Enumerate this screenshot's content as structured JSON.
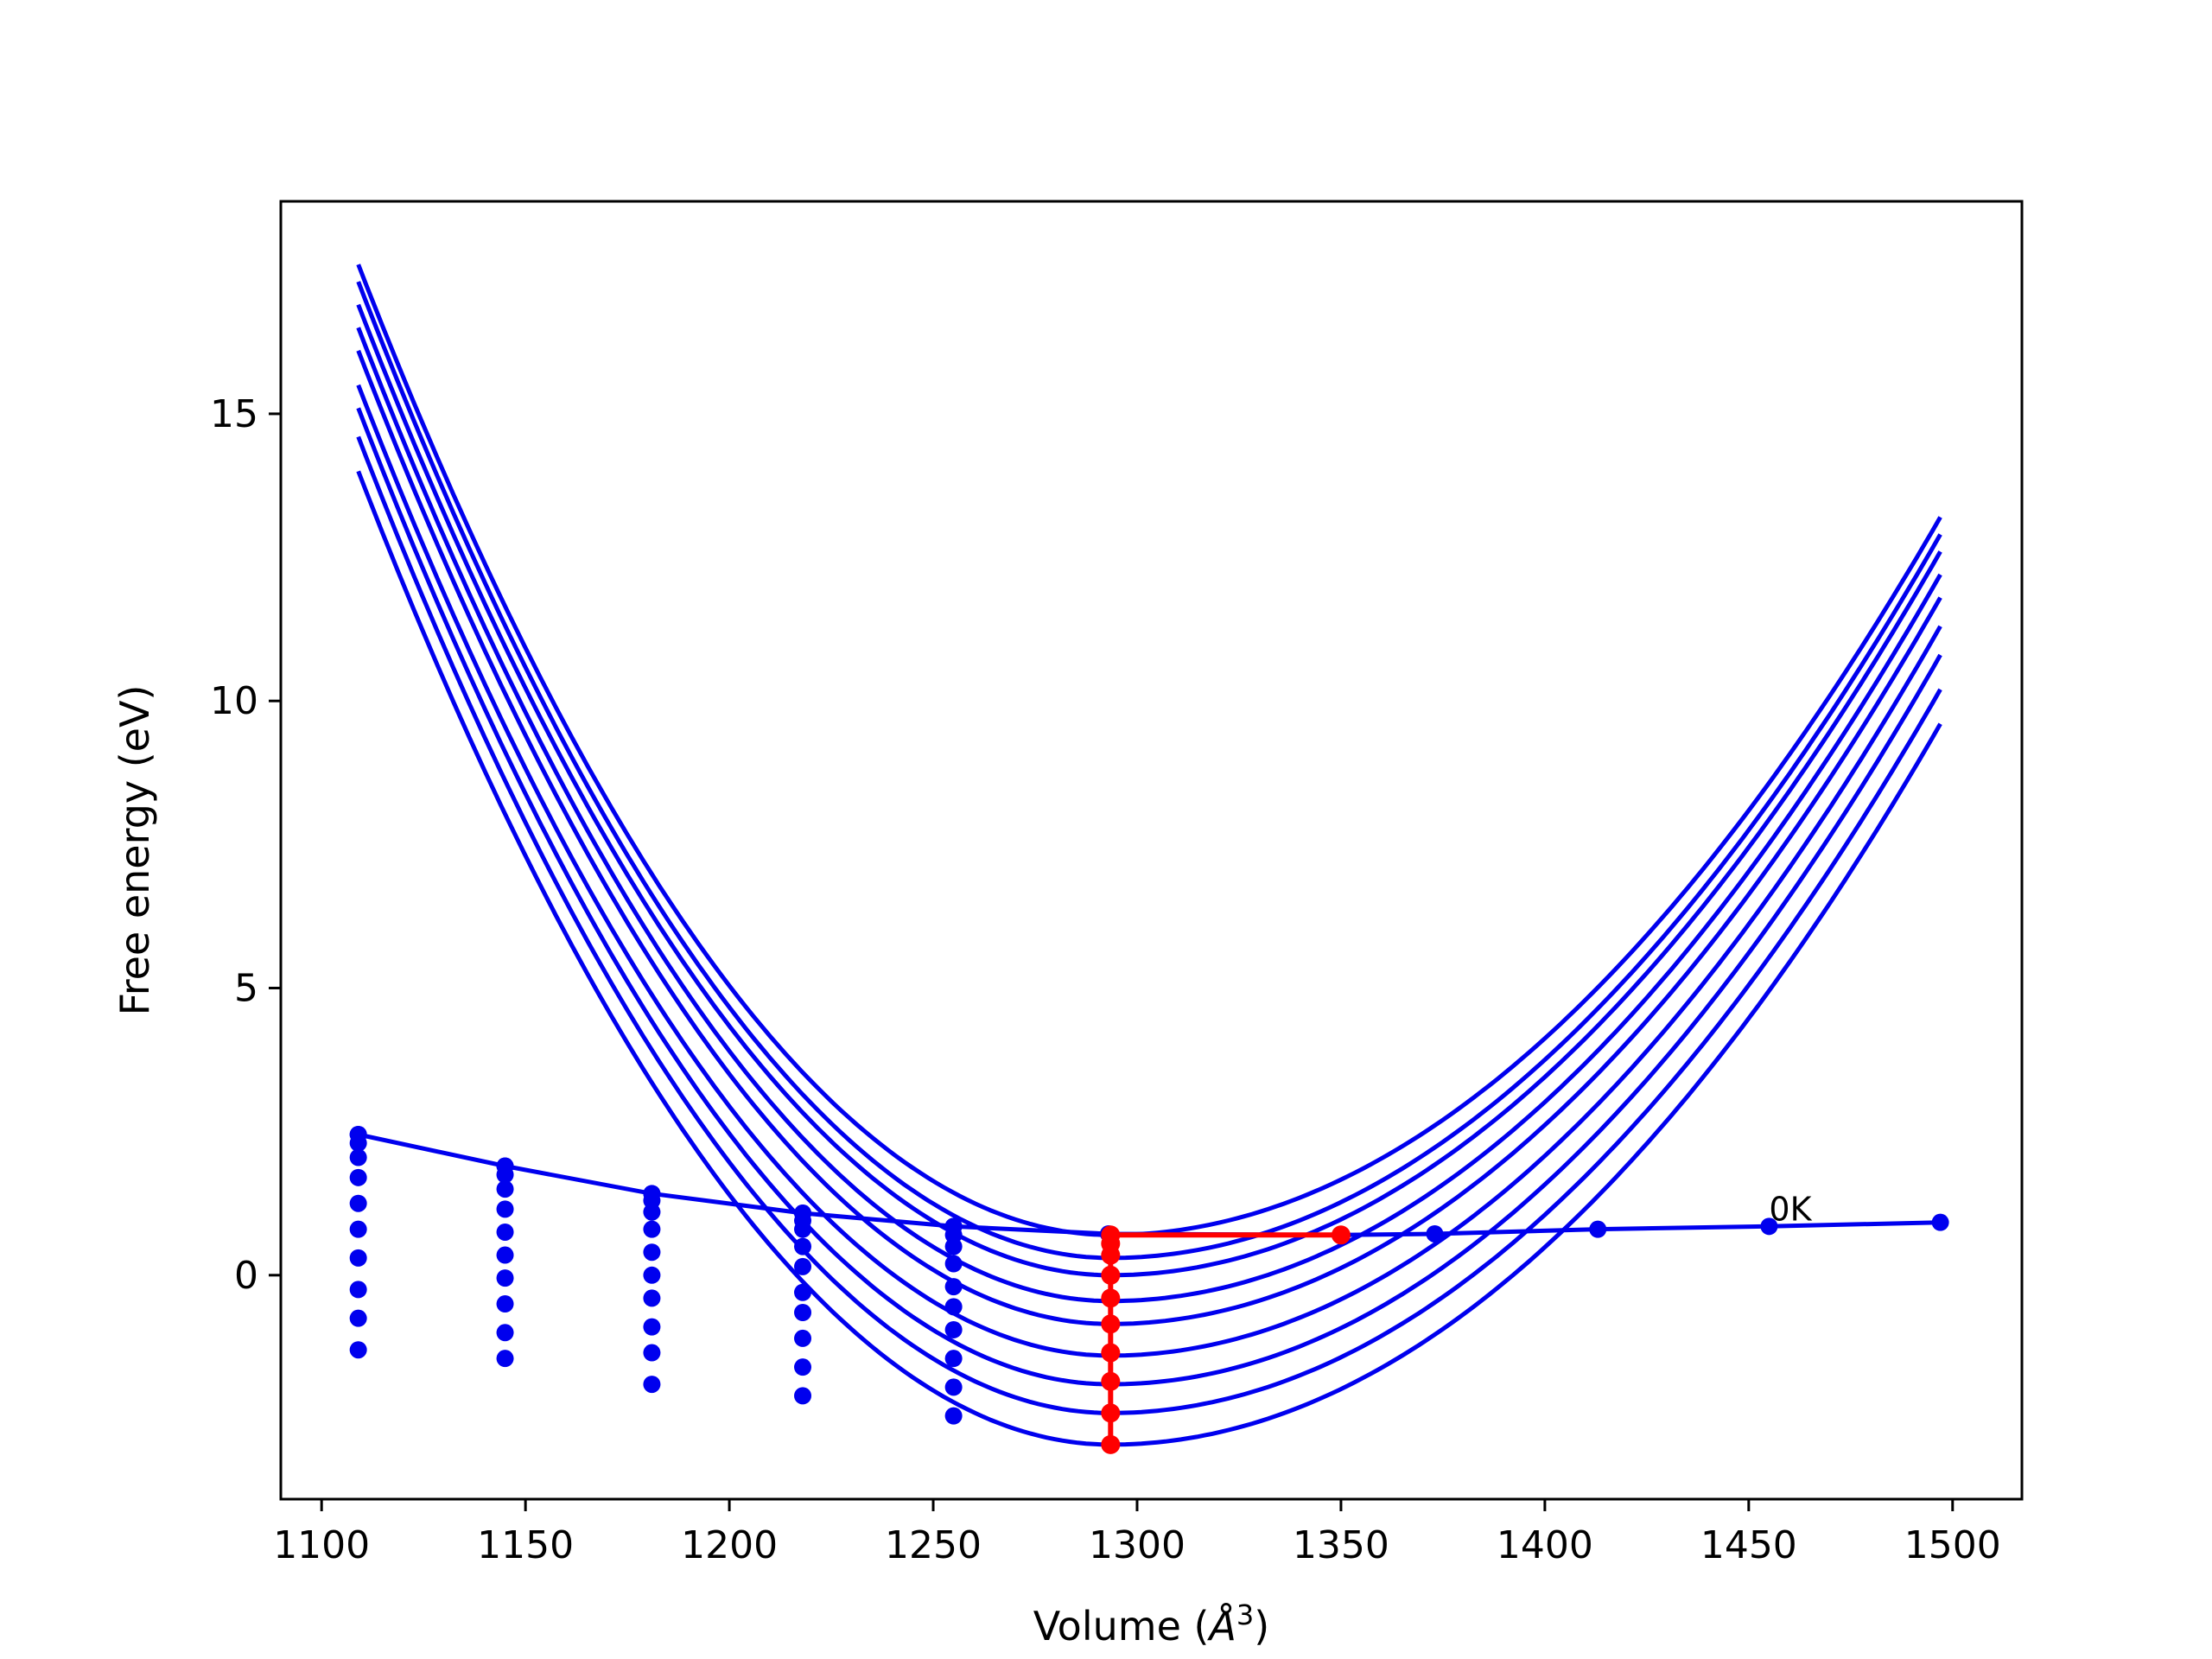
{
  "chart_data": {
    "type": "line",
    "title": "",
    "xlabel": "Volume (",
    "xlabel_unit": "Å",
    "xlabel_sup": "3",
    "xlabel_close": ")",
    "ylabel": "Free energy (eV)",
    "xlim": [
      1090,
      1517
    ],
    "ylim": [
      -3.9,
      18.7
    ],
    "xticks": [
      1100,
      1150,
      1200,
      1250,
      1300,
      1350,
      1400,
      1450,
      1500
    ],
    "yticks": [
      0,
      5,
      10,
      15
    ],
    "grid": false,
    "legend": "none",
    "colors": {
      "curves": "#0000ee",
      "highlight": "#ff0000",
      "axes": "#000000"
    },
    "annotation": {
      "text": "0K",
      "x": 1455,
      "y": 0.95
    },
    "fit_curves": {
      "x_range": [
        1109,
        1497
      ],
      "curves": [
        {
          "x_min": 1293.5,
          "y_min": 0.7,
          "y_at_left": 17.6,
          "y_at_right": 13.2
        },
        {
          "x_min": 1293.5,
          "y_min": 0.3,
          "y_at_left": 17.3,
          "y_at_right": 12.9
        },
        {
          "x_min": 1293.5,
          "y_min": 0.0,
          "y_at_left": 16.9,
          "y_at_right": 12.6
        },
        {
          "x_min": 1293.5,
          "y_min": -0.45,
          "y_at_left": 16.5,
          "y_at_right": 12.2
        },
        {
          "x_min": 1293.5,
          "y_min": -0.85,
          "y_at_left": 16.1,
          "y_at_right": 11.8
        },
        {
          "x_min": 1293.5,
          "y_min": -1.4,
          "y_at_left": 15.5,
          "y_at_right": 11.3
        },
        {
          "x_min": 1293.5,
          "y_min": -1.9,
          "y_at_left": 15.1,
          "y_at_right": 10.8
        },
        {
          "x_min": 1293.5,
          "y_min": -2.4,
          "y_at_left": 14.6,
          "y_at_right": 10.2
        },
        {
          "x_min": 1293.5,
          "y_min": -2.95,
          "y_at_left": 14.0,
          "y_at_right": 9.6
        }
      ]
    },
    "zero_k_curve": {
      "x": [
        1109,
        1145,
        1181,
        1218,
        1255,
        1293,
        1350,
        1373,
        1413,
        1455,
        1497
      ],
      "y": [
        2.45,
        1.9,
        1.42,
        1.08,
        0.85,
        0.72,
        0.7,
        0.72,
        0.8,
        0.85,
        0.92
      ]
    },
    "scatter_columns": [
      {
        "x": 1109,
        "y": [
          2.45,
          2.3,
          2.05,
          1.7,
          1.25,
          0.8,
          0.3,
          -0.25,
          -0.75,
          -1.3
        ]
      },
      {
        "x": 1145,
        "y": [
          1.9,
          1.75,
          1.5,
          1.15,
          0.75,
          0.35,
          -0.05,
          -0.5,
          -1.0,
          -1.45
        ]
      },
      {
        "x": 1181,
        "y": [
          1.42,
          1.3,
          1.1,
          0.8,
          0.4,
          0.0,
          -0.4,
          -0.9,
          -1.35,
          -1.9
        ]
      },
      {
        "x": 1218,
        "y": [
          1.08,
          0.95,
          0.8,
          0.5,
          0.15,
          -0.3,
          -0.65,
          -1.1,
          -1.6,
          -2.1
        ]
      },
      {
        "x": 1255,
        "y": [
          0.85,
          0.7,
          0.5,
          0.2,
          -0.2,
          -0.55,
          -0.95,
          -1.45,
          -1.95,
          -2.45
        ]
      }
    ],
    "highlight_series": {
      "vertical": {
        "x": 1293.5,
        "y": [
          0.7,
          0.55,
          0.35,
          0.0,
          -0.4,
          -0.85,
          -1.35,
          -1.85,
          -2.4,
          -2.95
        ]
      },
      "horizontal": {
        "x": [
          1293.5,
          1350
        ],
        "y": [
          0.7,
          0.7
        ]
      }
    }
  }
}
